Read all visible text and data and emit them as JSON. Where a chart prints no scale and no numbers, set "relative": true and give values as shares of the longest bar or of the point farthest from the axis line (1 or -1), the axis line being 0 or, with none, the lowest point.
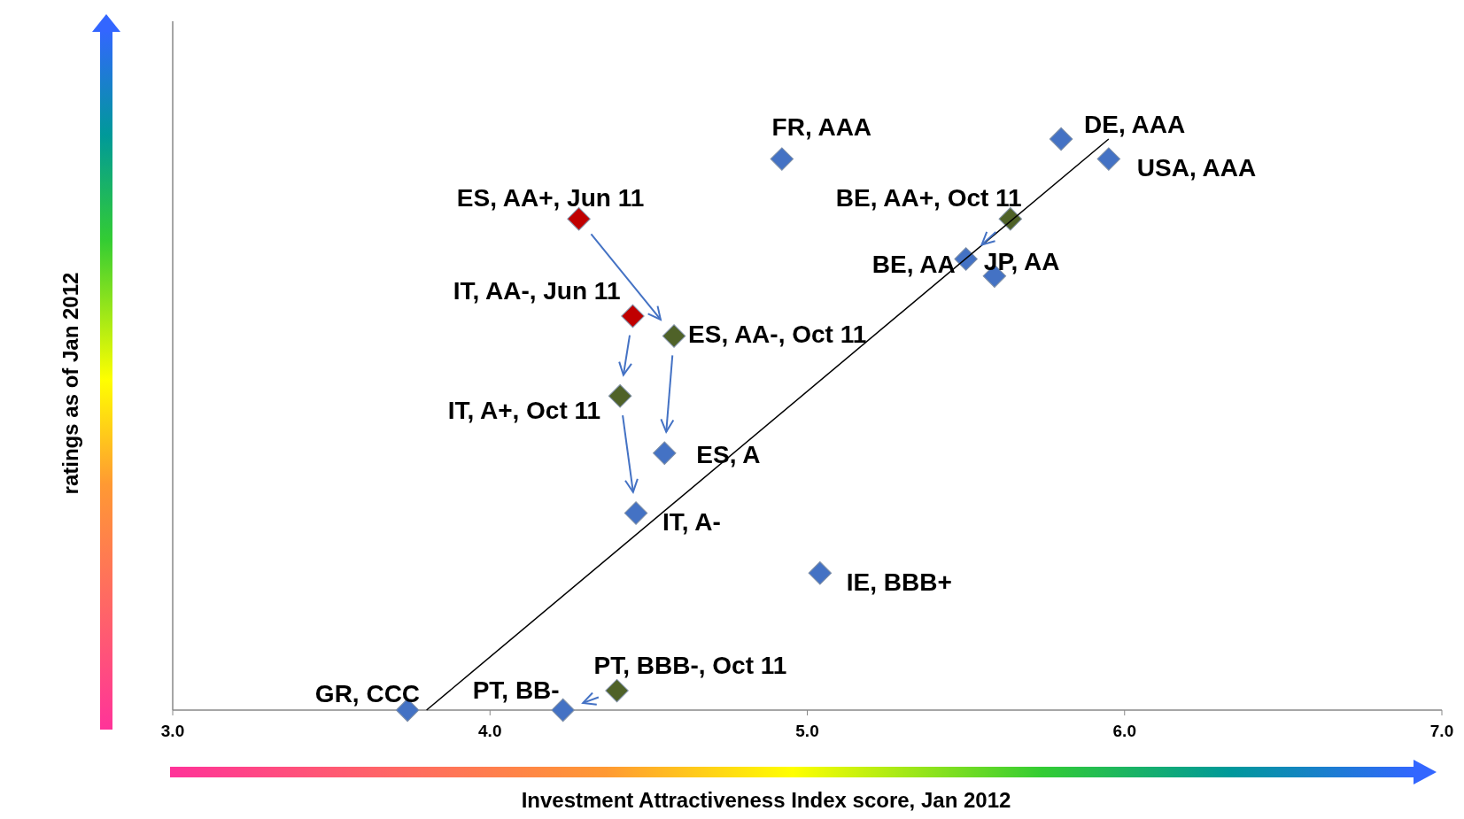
{
  "chart_data": {
    "type": "scatter",
    "xlabel": "Investment Attractiveness Index score, Jan 2012",
    "ylabel": "ratings as of Jan 2012",
    "relative": true,
    "xlim": [
      3.0,
      7.0
    ],
    "xticks": [
      {
        "value": 3,
        "label": "3.0"
      },
      {
        "value": 4,
        "label": "4.0"
      },
      {
        "value": 5,
        "label": "5.0"
      },
      {
        "value": 6,
        "label": "6.0"
      },
      {
        "value": 7,
        "label": "7.0"
      }
    ],
    "marker": "diamond",
    "grid": false,
    "series": [
      {
        "color": "#4472c4",
        "x": [
          3.74,
          4.23,
          5.04,
          4.46,
          4.55,
          5.5,
          5.59,
          5.8,
          5.95,
          4.92
        ],
        "values": [
          0,
          0,
          0.24,
          0.345,
          0.45,
          0.79,
          0.76,
          1,
          0.965,
          0.965
        ]
      },
      {
        "color": "#c00000",
        "x": [
          4.28,
          4.45
        ],
        "values": [
          0.86,
          0.69
        ]
      },
      {
        "color": "#4f6228",
        "x": [
          4.4,
          4.41,
          4.58,
          5.64
        ],
        "values": [
          0.034,
          0.55,
          0.655,
          0.86
        ]
      },
      {
        "type": "line",
        "color": "#000000",
        "marker": "none",
        "x": [
          3.8,
          5.95
        ],
        "values": [
          0,
          1
        ]
      }
    ],
    "annotations": [
      {
        "text": "GR, CCC",
        "x": 3.74,
        "y": 0
      },
      {
        "text": "PT, BB-",
        "x": 4.23,
        "y": 0
      },
      {
        "text": "IE, BBB+",
        "x": 5.04,
        "y": 0.24
      },
      {
        "text": "IT, A-",
        "x": 4.46,
        "y": 0.345
      },
      {
        "text": "ES, A",
        "x": 4.55,
        "y": 0.45
      },
      {
        "text": "BE, AA",
        "x": 5.5,
        "y": 0.79
      },
      {
        "text": "JP, AA",
        "x": 5.59,
        "y": 0.76
      },
      {
        "text": "DE, AAA",
        "x": 5.8,
        "y": 1
      },
      {
        "text": "USA, AAA",
        "x": 5.95,
        "y": 0.965
      },
      {
        "text": "FR, AAA",
        "x": 4.92,
        "y": 0.965
      },
      {
        "text": "ES, AA+, Jun 11",
        "x": 4.28,
        "y": 0.86
      },
      {
        "text": "IT, AA-, Jun 11",
        "x": 4.45,
        "y": 0.69
      },
      {
        "text": "PT, BBB-, Oct 11",
        "x": 4.4,
        "y": 0.034
      },
      {
        "text": "IT, A+, Oct 11",
        "x": 4.41,
        "y": 0.55
      },
      {
        "text": "ES, AA-, Oct 11",
        "x": 4.58,
        "y": 0.655
      },
      {
        "text": "BE, AA+, Oct 11",
        "x": 5.64,
        "y": 0.86
      }
    ]
  }
}
